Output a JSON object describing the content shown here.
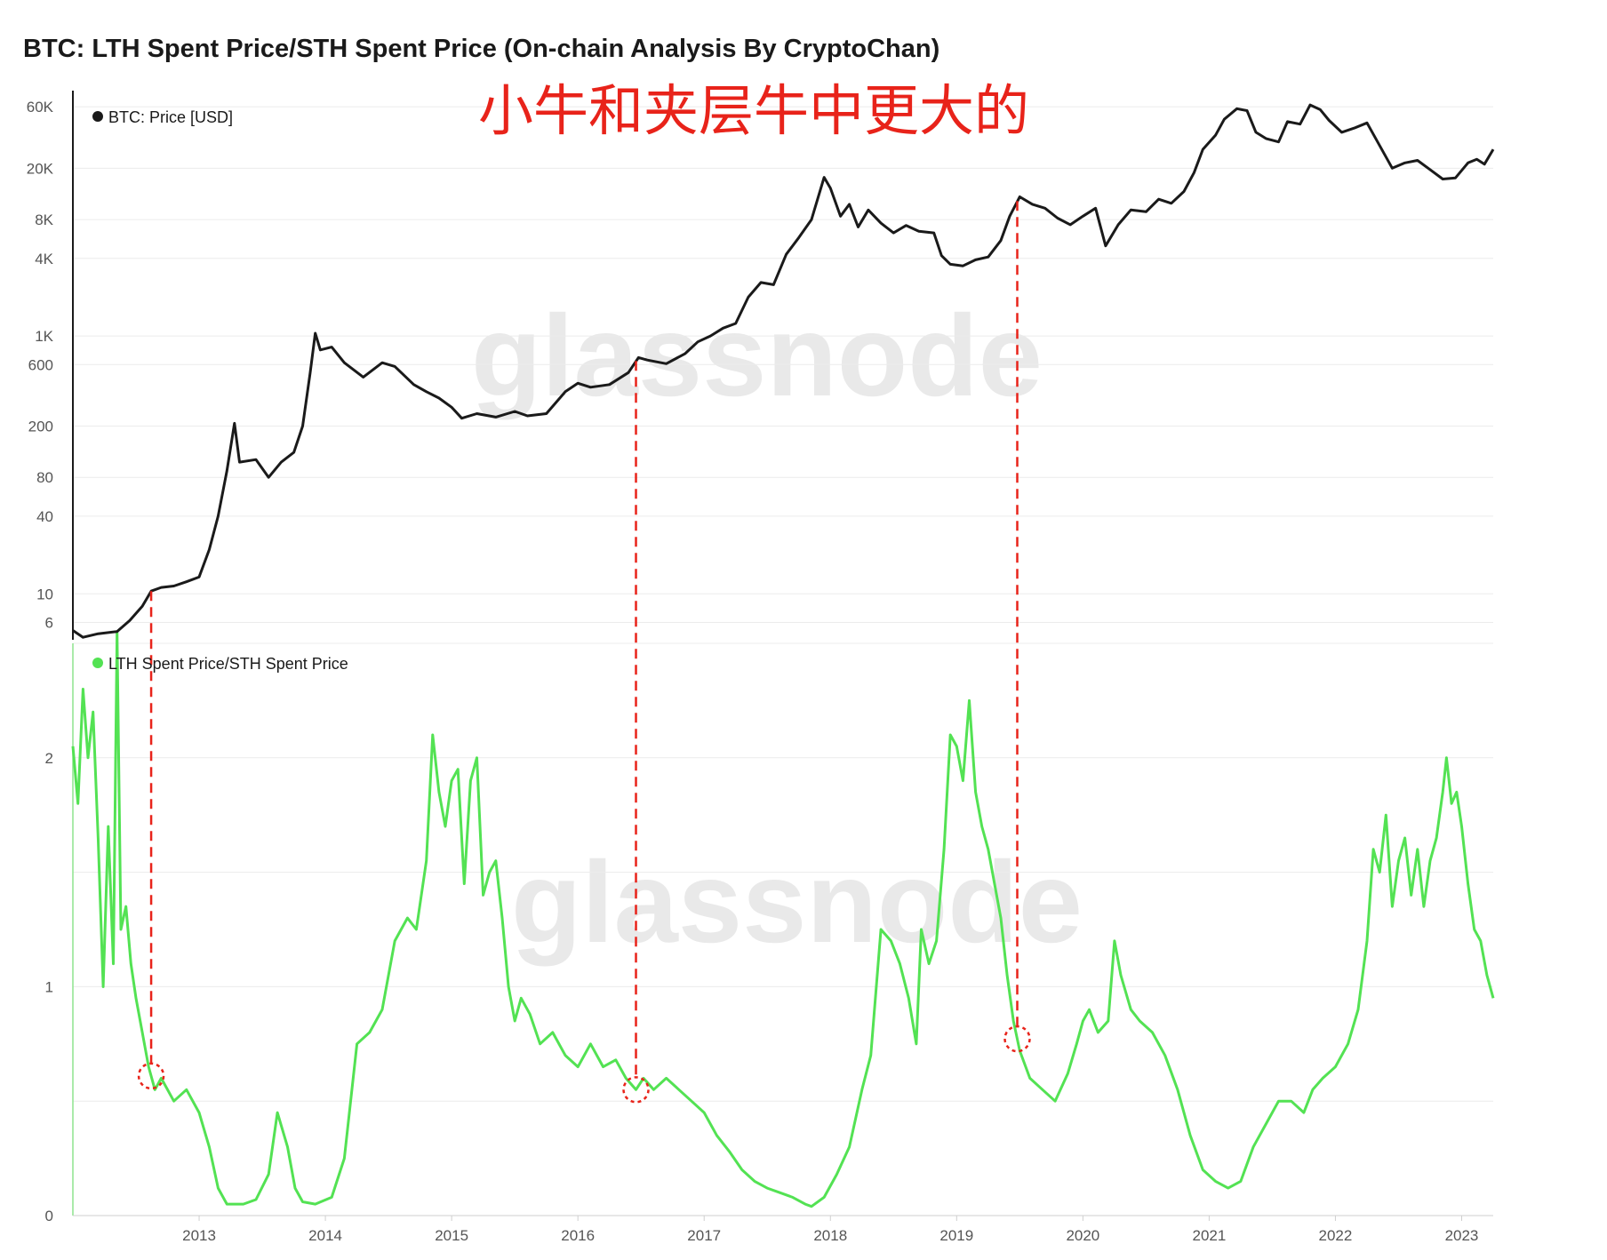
{
  "chart_data": {
    "type": "line",
    "title": "BTC: LTH Spent Price/STH Spent Price (On-chain Analysis By CryptoChan)",
    "annotation": "小牛和夹层牛中更大的",
    "watermark": "glassnode",
    "colors": {
      "price": "#1a1a1a",
      "ratio": "#53e253",
      "annotation": "#e8231a",
      "grid": "#ececec",
      "axis": "#1a1a1a",
      "tick": "#555555",
      "watermark": "#e6e6e6"
    },
    "x_axis": {
      "labels": [
        "2013",
        "2014",
        "2015",
        "2016",
        "2017",
        "2018",
        "2019",
        "2020",
        "2021",
        "2022",
        "2023"
      ],
      "range": [
        2012.0,
        2023.25
      ]
    },
    "price_panel": {
      "legend": "BTC: Price [USD]",
      "scale": "log",
      "y_ticks": [
        "60K",
        "20K",
        "8K",
        "4K",
        "1K",
        "600",
        "200",
        "80",
        "40",
        "10",
        "6"
      ],
      "series": {
        "name": "BTC: Price [USD]",
        "points": [
          [
            2012.0,
            5.2
          ],
          [
            2012.08,
            4.6
          ],
          [
            2012.2,
            4.9
          ],
          [
            2012.35,
            5.1
          ],
          [
            2012.45,
            6.2
          ],
          [
            2012.55,
            8.0
          ],
          [
            2012.62,
            10.5
          ],
          [
            2012.7,
            11.2
          ],
          [
            2012.8,
            11.5
          ],
          [
            2012.9,
            12.4
          ],
          [
            2013.0,
            13.5
          ],
          [
            2013.08,
            22
          ],
          [
            2013.15,
            40
          ],
          [
            2013.22,
            90
          ],
          [
            2013.28,
            210
          ],
          [
            2013.32,
            105
          ],
          [
            2013.45,
            110
          ],
          [
            2013.55,
            80
          ],
          [
            2013.65,
            105
          ],
          [
            2013.75,
            125
          ],
          [
            2013.82,
            200
          ],
          [
            2013.88,
            520
          ],
          [
            2013.92,
            1050
          ],
          [
            2013.96,
            780
          ],
          [
            2014.05,
            820
          ],
          [
            2014.15,
            620
          ],
          [
            2014.3,
            480
          ],
          [
            2014.45,
            620
          ],
          [
            2014.55,
            580
          ],
          [
            2014.7,
            420
          ],
          [
            2014.8,
            370
          ],
          [
            2014.9,
            330
          ],
          [
            2015.0,
            280
          ],
          [
            2015.08,
            230
          ],
          [
            2015.2,
            250
          ],
          [
            2015.35,
            235
          ],
          [
            2015.5,
            260
          ],
          [
            2015.6,
            240
          ],
          [
            2015.75,
            250
          ],
          [
            2015.9,
            370
          ],
          [
            2016.0,
            430
          ],
          [
            2016.1,
            400
          ],
          [
            2016.25,
            420
          ],
          [
            2016.4,
            520
          ],
          [
            2016.48,
            680
          ],
          [
            2016.55,
            650
          ],
          [
            2016.7,
            610
          ],
          [
            2016.85,
            730
          ],
          [
            2016.95,
            900
          ],
          [
            2017.05,
            1000
          ],
          [
            2017.15,
            1150
          ],
          [
            2017.25,
            1250
          ],
          [
            2017.35,
            2000
          ],
          [
            2017.45,
            2600
          ],
          [
            2017.55,
            2500
          ],
          [
            2017.65,
            4300
          ],
          [
            2017.75,
            5800
          ],
          [
            2017.85,
            8000
          ],
          [
            2017.95,
            17000
          ],
          [
            2018.0,
            14000
          ],
          [
            2018.08,
            8500
          ],
          [
            2018.15,
            10500
          ],
          [
            2018.22,
            7000
          ],
          [
            2018.3,
            9500
          ],
          [
            2018.4,
            7500
          ],
          [
            2018.5,
            6300
          ],
          [
            2018.6,
            7200
          ],
          [
            2018.7,
            6500
          ],
          [
            2018.82,
            6300
          ],
          [
            2018.88,
            4200
          ],
          [
            2018.95,
            3600
          ],
          [
            2019.05,
            3500
          ],
          [
            2019.15,
            3900
          ],
          [
            2019.25,
            4100
          ],
          [
            2019.35,
            5500
          ],
          [
            2019.42,
            8500
          ],
          [
            2019.5,
            12000
          ],
          [
            2019.6,
            10500
          ],
          [
            2019.7,
            9800
          ],
          [
            2019.8,
            8200
          ],
          [
            2019.9,
            7300
          ],
          [
            2020.0,
            8500
          ],
          [
            2020.1,
            9800
          ],
          [
            2020.18,
            5000
          ],
          [
            2020.28,
            7300
          ],
          [
            2020.38,
            9500
          ],
          [
            2020.5,
            9200
          ],
          [
            2020.6,
            11500
          ],
          [
            2020.7,
            10700
          ],
          [
            2020.8,
            13200
          ],
          [
            2020.88,
            18500
          ],
          [
            2020.95,
            28000
          ],
          [
            2021.05,
            36000
          ],
          [
            2021.12,
            48000
          ],
          [
            2021.22,
            58000
          ],
          [
            2021.3,
            56000
          ],
          [
            2021.37,
            38000
          ],
          [
            2021.45,
            34000
          ],
          [
            2021.55,
            32000
          ],
          [
            2021.62,
            46000
          ],
          [
            2021.72,
            44000
          ],
          [
            2021.8,
            62000
          ],
          [
            2021.88,
            57000
          ],
          [
            2021.95,
            47000
          ],
          [
            2022.05,
            38000
          ],
          [
            2022.15,
            41000
          ],
          [
            2022.25,
            45000
          ],
          [
            2022.35,
            30000
          ],
          [
            2022.45,
            20000
          ],
          [
            2022.55,
            22000
          ],
          [
            2022.65,
            23000
          ],
          [
            2022.75,
            19500
          ],
          [
            2022.85,
            16500
          ],
          [
            2022.95,
            16800
          ],
          [
            2023.05,
            22000
          ],
          [
            2023.12,
            23500
          ],
          [
            2023.18,
            21500
          ],
          [
            2023.25,
            28000
          ]
        ]
      }
    },
    "ratio_panel": {
      "legend": "LTH Spent Price/STH Spent Price",
      "scale": "linear",
      "y_ticks": [
        "2",
        "1",
        "0"
      ],
      "ylim": [
        0,
        2.5
      ],
      "series": {
        "name": "LTH Spent Price/STH Spent Price",
        "points": [
          [
            2012.0,
            2.05
          ],
          [
            2012.04,
            1.8
          ],
          [
            2012.08,
            2.3
          ],
          [
            2012.12,
            2.0
          ],
          [
            2012.16,
            2.2
          ],
          [
            2012.2,
            1.65
          ],
          [
            2012.24,
            1.0
          ],
          [
            2012.28,
            1.7
          ],
          [
            2012.32,
            1.1
          ],
          [
            2012.35,
            2.55
          ],
          [
            2012.38,
            1.25
          ],
          [
            2012.42,
            1.35
          ],
          [
            2012.46,
            1.1
          ],
          [
            2012.5,
            0.95
          ],
          [
            2012.55,
            0.8
          ],
          [
            2012.6,
            0.65
          ],
          [
            2012.65,
            0.55
          ],
          [
            2012.7,
            0.6
          ],
          [
            2012.8,
            0.5
          ],
          [
            2012.9,
            0.55
          ],
          [
            2013.0,
            0.45
          ],
          [
            2013.08,
            0.3
          ],
          [
            2013.15,
            0.12
          ],
          [
            2013.22,
            0.05
          ],
          [
            2013.35,
            0.05
          ],
          [
            2013.45,
            0.07
          ],
          [
            2013.55,
            0.18
          ],
          [
            2013.62,
            0.45
          ],
          [
            2013.7,
            0.3
          ],
          [
            2013.76,
            0.12
          ],
          [
            2013.82,
            0.06
          ],
          [
            2013.92,
            0.05
          ],
          [
            2014.05,
            0.08
          ],
          [
            2014.15,
            0.25
          ],
          [
            2014.25,
            0.75
          ],
          [
            2014.35,
            0.8
          ],
          [
            2014.45,
            0.9
          ],
          [
            2014.55,
            1.2
          ],
          [
            2014.65,
            1.3
          ],
          [
            2014.72,
            1.25
          ],
          [
            2014.8,
            1.55
          ],
          [
            2014.85,
            2.1
          ],
          [
            2014.9,
            1.85
          ],
          [
            2014.95,
            1.7
          ],
          [
            2015.0,
            1.9
          ],
          [
            2015.05,
            1.95
          ],
          [
            2015.1,
            1.45
          ],
          [
            2015.15,
            1.9
          ],
          [
            2015.2,
            2.0
          ],
          [
            2015.25,
            1.4
          ],
          [
            2015.3,
            1.5
          ],
          [
            2015.35,
            1.55
          ],
          [
            2015.4,
            1.3
          ],
          [
            2015.45,
            1.0
          ],
          [
            2015.5,
            0.85
          ],
          [
            2015.55,
            0.95
          ],
          [
            2015.62,
            0.88
          ],
          [
            2015.7,
            0.75
          ],
          [
            2015.8,
            0.8
          ],
          [
            2015.9,
            0.7
          ],
          [
            2016.0,
            0.65
          ],
          [
            2016.1,
            0.75
          ],
          [
            2016.2,
            0.65
          ],
          [
            2016.3,
            0.68
          ],
          [
            2016.38,
            0.6
          ],
          [
            2016.46,
            0.55
          ],
          [
            2016.52,
            0.6
          ],
          [
            2016.6,
            0.55
          ],
          [
            2016.7,
            0.6
          ],
          [
            2016.8,
            0.55
          ],
          [
            2016.9,
            0.5
          ],
          [
            2017.0,
            0.45
          ],
          [
            2017.1,
            0.35
          ],
          [
            2017.2,
            0.28
          ],
          [
            2017.3,
            0.2
          ],
          [
            2017.4,
            0.15
          ],
          [
            2017.5,
            0.12
          ],
          [
            2017.6,
            0.1
          ],
          [
            2017.7,
            0.08
          ],
          [
            2017.8,
            0.05
          ],
          [
            2017.85,
            0.04
          ],
          [
            2017.95,
            0.08
          ],
          [
            2018.05,
            0.18
          ],
          [
            2018.15,
            0.3
          ],
          [
            2018.25,
            0.55
          ],
          [
            2018.32,
            0.7
          ],
          [
            2018.4,
            1.25
          ],
          [
            2018.48,
            1.2
          ],
          [
            2018.55,
            1.1
          ],
          [
            2018.62,
            0.95
          ],
          [
            2018.68,
            0.75
          ],
          [
            2018.72,
            1.25
          ],
          [
            2018.78,
            1.1
          ],
          [
            2018.84,
            1.2
          ],
          [
            2018.9,
            1.6
          ],
          [
            2018.95,
            2.1
          ],
          [
            2019.0,
            2.05
          ],
          [
            2019.05,
            1.9
          ],
          [
            2019.1,
            2.25
          ],
          [
            2019.15,
            1.85
          ],
          [
            2019.2,
            1.7
          ],
          [
            2019.25,
            1.6
          ],
          [
            2019.3,
            1.45
          ],
          [
            2019.35,
            1.3
          ],
          [
            2019.4,
            1.05
          ],
          [
            2019.45,
            0.85
          ],
          [
            2019.5,
            0.72
          ],
          [
            2019.58,
            0.6
          ],
          [
            2019.68,
            0.55
          ],
          [
            2019.78,
            0.5
          ],
          [
            2019.88,
            0.62
          ],
          [
            2019.95,
            0.75
          ],
          [
            2020.0,
            0.85
          ],
          [
            2020.05,
            0.9
          ],
          [
            2020.12,
            0.8
          ],
          [
            2020.2,
            0.85
          ],
          [
            2020.25,
            1.2
          ],
          [
            2020.3,
            1.05
          ],
          [
            2020.38,
            0.9
          ],
          [
            2020.45,
            0.85
          ],
          [
            2020.55,
            0.8
          ],
          [
            2020.65,
            0.7
          ],
          [
            2020.75,
            0.55
          ],
          [
            2020.85,
            0.35
          ],
          [
            2020.95,
            0.2
          ],
          [
            2021.05,
            0.15
          ],
          [
            2021.15,
            0.12
          ],
          [
            2021.25,
            0.15
          ],
          [
            2021.35,
            0.3
          ],
          [
            2021.45,
            0.4
          ],
          [
            2021.55,
            0.5
          ],
          [
            2021.65,
            0.5
          ],
          [
            2021.75,
            0.45
          ],
          [
            2021.82,
            0.55
          ],
          [
            2021.9,
            0.6
          ],
          [
            2022.0,
            0.65
          ],
          [
            2022.1,
            0.75
          ],
          [
            2022.18,
            0.9
          ],
          [
            2022.25,
            1.2
          ],
          [
            2022.3,
            1.6
          ],
          [
            2022.35,
            1.5
          ],
          [
            2022.4,
            1.75
          ],
          [
            2022.45,
            1.35
          ],
          [
            2022.5,
            1.55
          ],
          [
            2022.55,
            1.65
          ],
          [
            2022.6,
            1.4
          ],
          [
            2022.65,
            1.6
          ],
          [
            2022.7,
            1.35
          ],
          [
            2022.75,
            1.55
          ],
          [
            2022.8,
            1.65
          ],
          [
            2022.85,
            1.85
          ],
          [
            2022.88,
            2.0
          ],
          [
            2022.92,
            1.8
          ],
          [
            2022.96,
            1.85
          ],
          [
            2023.0,
            1.7
          ],
          [
            2023.05,
            1.45
          ],
          [
            2023.1,
            1.25
          ],
          [
            2023.15,
            1.2
          ],
          [
            2023.2,
            1.05
          ],
          [
            2023.25,
            0.95
          ]
        ]
      }
    }
  }
}
